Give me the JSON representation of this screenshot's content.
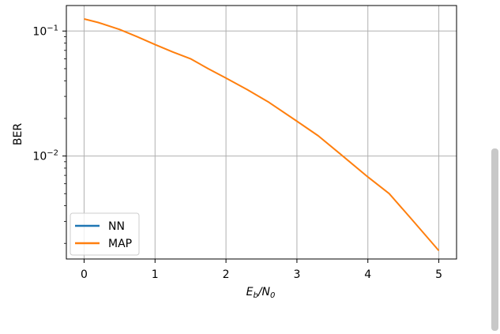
{
  "chart_data": {
    "type": "line",
    "xlabel": {
      "main": "E",
      "sub": "b",
      "mid": "/N",
      "sub2": "0"
    },
    "ylabel": "BER",
    "xlim": [
      -0.25,
      5.25
    ],
    "ylim": [
      0.0015,
      0.16
    ],
    "yscale": "log",
    "grid": true,
    "legend_position": "lower-left",
    "x_ticks": [
      0,
      1,
      2,
      3,
      4,
      5
    ],
    "x_tick_labels": [
      "0",
      "1",
      "2",
      "3",
      "4",
      "5"
    ],
    "y_ticks": [
      0.1,
      0.01
    ],
    "y_tick_labels": [
      {
        "base": "10",
        "exp": "−1"
      },
      {
        "base": "10",
        "exp": "−2"
      }
    ],
    "series": [
      {
        "name": "NN",
        "color": "#1f77b4",
        "x": [],
        "values": []
      },
      {
        "name": "MAP",
        "color": "#ff7f0e",
        "x": [
          0,
          0.2,
          0.5,
          0.75,
          1.0,
          1.25,
          1.5,
          1.75,
          2.0,
          2.3,
          2.6,
          3.0,
          3.3,
          3.6,
          4.0,
          4.3,
          4.6,
          5.0
        ],
        "values": [
          0.125,
          0.117,
          0.103,
          0.09,
          0.078,
          0.068,
          0.06,
          0.05,
          0.042,
          0.034,
          0.027,
          0.019,
          0.0145,
          0.0105,
          0.0068,
          0.005,
          0.0032,
          0.00175
        ]
      }
    ]
  }
}
